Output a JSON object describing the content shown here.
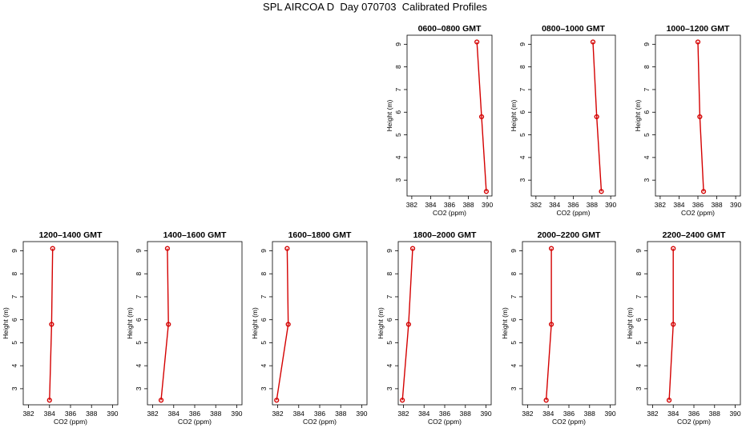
{
  "title": "SPL AIRCOA D  Day 070703  Calibrated Profiles",
  "colors": {
    "series": "#d40000",
    "axes": "#000000"
  },
  "chart_data": [
    {
      "type": "line",
      "title": "0600–0800 GMT",
      "xlabel": "CO2 (ppm)",
      "ylabel": "Height (m)",
      "xlim": [
        381.5,
        390.5
      ],
      "ylim": [
        2.3,
        9.4
      ],
      "xticks": [
        "382",
        "384",
        "386",
        "388",
        "390"
      ],
      "yticks": [
        "3",
        "4",
        "5",
        "6",
        "7",
        "8",
        "9"
      ],
      "x": [
        389.9,
        389.4,
        388.9
      ],
      "y": [
        2.5,
        5.8,
        9.1
      ]
    },
    {
      "type": "line",
      "title": "0800–1000 GMT",
      "xlabel": "CO2 (ppm)",
      "ylabel": "Height (m)",
      "xlim": [
        381.5,
        390.5
      ],
      "ylim": [
        2.3,
        9.4
      ],
      "xticks": [
        "382",
        "384",
        "386",
        "388",
        "390"
      ],
      "yticks": [
        "3",
        "4",
        "5",
        "6",
        "7",
        "8",
        "9"
      ],
      "x": [
        389.0,
        388.5,
        388.1
      ],
      "y": [
        2.5,
        5.8,
        9.1
      ]
    },
    {
      "type": "line",
      "title": "1000–1200 GMT",
      "xlabel": "CO2 (ppm)",
      "ylabel": "Height (m)",
      "xlim": [
        381.5,
        390.5
      ],
      "ylim": [
        2.3,
        9.4
      ],
      "xticks": [
        "382",
        "384",
        "386",
        "388",
        "390"
      ],
      "yticks": [
        "3",
        "4",
        "5",
        "6",
        "7",
        "8",
        "9"
      ],
      "x": [
        386.6,
        386.2,
        386.0
      ],
      "y": [
        2.5,
        5.8,
        9.1
      ]
    },
    {
      "type": "line",
      "title": "1200–1400 GMT",
      "xlabel": "CO2 (ppm)",
      "ylabel": "Height (m)",
      "xlim": [
        381.5,
        390.5
      ],
      "ylim": [
        2.3,
        9.4
      ],
      "xticks": [
        "382",
        "384",
        "386",
        "388",
        "390"
      ],
      "yticks": [
        "3",
        "4",
        "5",
        "6",
        "7",
        "8",
        "9"
      ],
      "x": [
        384.0,
        384.2,
        384.3
      ],
      "y": [
        2.5,
        5.8,
        9.1
      ]
    },
    {
      "type": "line",
      "title": "1400–1600 GMT",
      "xlabel": "CO2 (ppm)",
      "ylabel": "Height (m)",
      "xlim": [
        381.5,
        390.5
      ],
      "ylim": [
        2.3,
        9.4
      ],
      "xticks": [
        "382",
        "384",
        "386",
        "388",
        "390"
      ],
      "yticks": [
        "3",
        "4",
        "5",
        "6",
        "7",
        "8",
        "9"
      ],
      "x": [
        382.8,
        383.5,
        383.4
      ],
      "y": [
        2.5,
        5.8,
        9.1
      ]
    },
    {
      "type": "line",
      "title": "1600–1800 GMT",
      "xlabel": "CO2 (ppm)",
      "ylabel": "Height (m)",
      "xlim": [
        381.5,
        390.5
      ],
      "ylim": [
        2.3,
        9.4
      ],
      "xticks": [
        "382",
        "384",
        "386",
        "388",
        "390"
      ],
      "yticks": [
        "3",
        "4",
        "5",
        "6",
        "7",
        "8",
        "9"
      ],
      "x": [
        381.9,
        383.0,
        382.9
      ],
      "y": [
        2.5,
        5.8,
        9.1
      ]
    },
    {
      "type": "line",
      "title": "1800–2000 GMT",
      "xlabel": "CO2 (ppm)",
      "ylabel": "Height (m)",
      "xlim": [
        381.5,
        390.5
      ],
      "ylim": [
        2.3,
        9.4
      ],
      "xticks": [
        "382",
        "384",
        "386",
        "388",
        "390"
      ],
      "yticks": [
        "3",
        "4",
        "5",
        "6",
        "7",
        "8",
        "9"
      ],
      "x": [
        381.9,
        382.5,
        382.9
      ],
      "y": [
        2.5,
        5.8,
        9.1
      ]
    },
    {
      "type": "line",
      "title": "2000–2200 GMT",
      "xlabel": "CO2 (ppm)",
      "ylabel": "Height (m)",
      "xlim": [
        381.5,
        390.5
      ],
      "ylim": [
        2.3,
        9.4
      ],
      "xticks": [
        "382",
        "384",
        "386",
        "388",
        "390"
      ],
      "yticks": [
        "3",
        "4",
        "5",
        "6",
        "7",
        "8",
        "9"
      ],
      "x": [
        383.8,
        384.3,
        384.3
      ],
      "y": [
        2.5,
        5.8,
        9.1
      ]
    },
    {
      "type": "line",
      "title": "2200–2400 GMT",
      "xlabel": "CO2 (ppm)",
      "ylabel": "Height (m)",
      "xlim": [
        381.5,
        390.5
      ],
      "ylim": [
        2.3,
        9.4
      ],
      "xticks": [
        "382",
        "384",
        "386",
        "388",
        "390"
      ],
      "yticks": [
        "3",
        "4",
        "5",
        "6",
        "7",
        "8",
        "9"
      ],
      "x": [
        383.6,
        384.0,
        384.0
      ],
      "y": [
        2.5,
        5.8,
        9.1
      ]
    }
  ]
}
